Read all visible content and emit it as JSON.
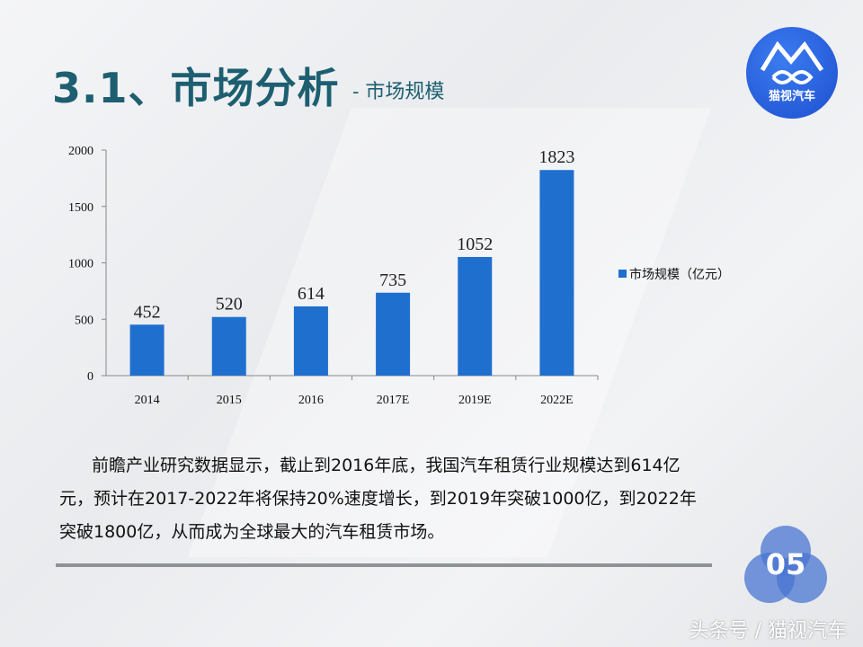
{
  "header": {
    "title": "3.1、市场分析",
    "subtitle": "-  市场规模",
    "logo_text": "猫视汽车"
  },
  "chart_data": {
    "type": "bar",
    "categories": [
      "2014",
      "2015",
      "2016",
      "2017E",
      "2019E",
      "2022E"
    ],
    "series": [
      {
        "name": "市场规模（亿元）",
        "values": [
          452,
          520,
          614,
          735,
          1052,
          1823
        ]
      }
    ],
    "data_labels": [
      "452",
      "520",
      "614",
      "735",
      "1052",
      "1823"
    ],
    "yticks": [
      "0",
      "500",
      "1000",
      "1500",
      "2000"
    ],
    "ylim": [
      0,
      2000
    ],
    "legend": "right",
    "grid": false,
    "bar_color": "#1f6fcf"
  },
  "body": {
    "paragraph": "前瞻产业研究数据显示，截止到2016年底，我国汽车租赁行业规模达到614亿元，预计在2017-2022年将保持20%速度增长，到2019年突破1000亿，到2022年突破1800亿，从而成为全球最大的汽车租赁市场。"
  },
  "page_badge": "05",
  "footer": "头条号 / 猫视汽车"
}
